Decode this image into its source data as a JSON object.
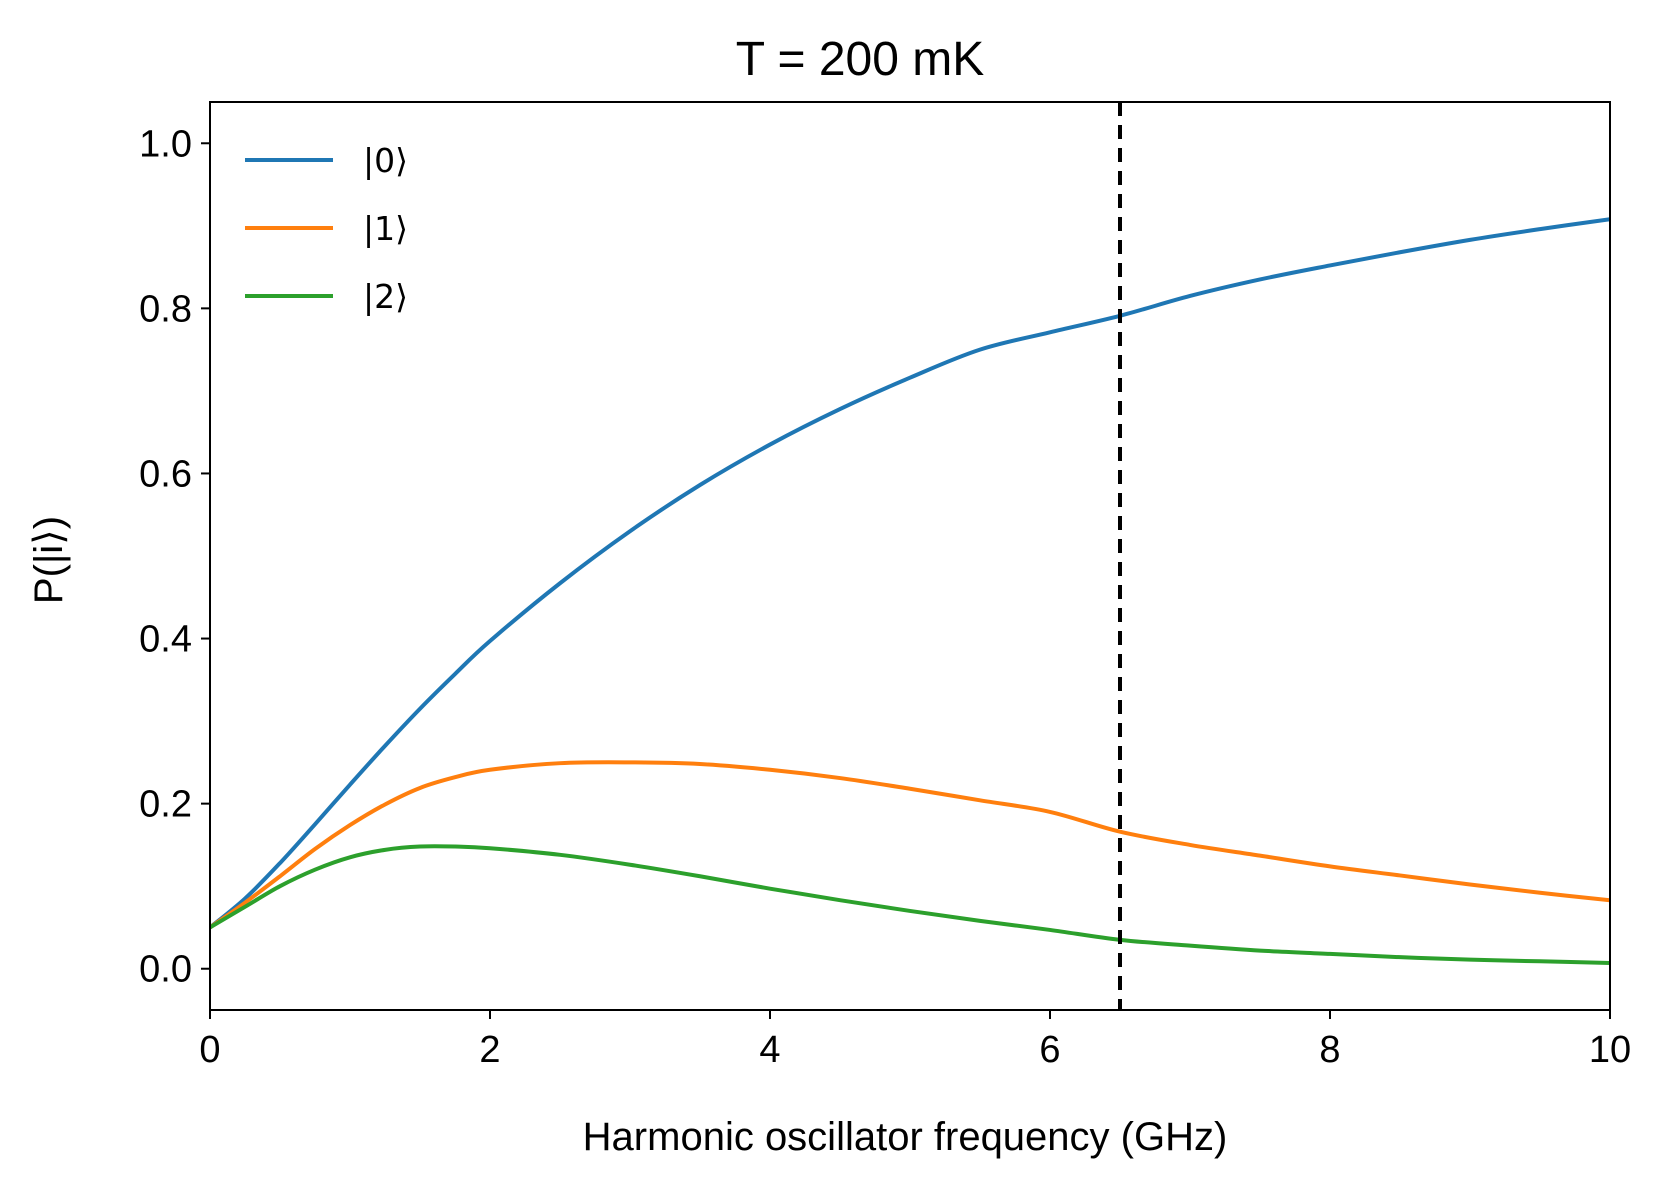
{
  "chart_data": {
    "type": "line",
    "title": "T = 200 mK",
    "xlabel": "Harmonic oscillator frequency (GHz)",
    "ylabel": "P(|i⟩)",
    "xlim": [
      0,
      10
    ],
    "ylim": [
      -0.05,
      1.05
    ],
    "xticks": [
      0,
      2,
      4,
      6,
      8,
      10
    ],
    "xtick_labels": [
      "0",
      "2",
      "4",
      "6",
      "8",
      "10"
    ],
    "yticks": [
      0.0,
      0.2,
      0.4,
      0.6,
      0.8,
      1.0
    ],
    "ytick_labels": [
      "0.0",
      "0.2",
      "0.4",
      "0.6",
      "0.8",
      "1.0"
    ],
    "grid": false,
    "legend_position": "top-left",
    "vline": {
      "x": 6.5,
      "style": "dashed",
      "color": "#000000"
    },
    "x": [
      0,
      0.25,
      0.5,
      0.75,
      1,
      1.25,
      1.5,
      1.75,
      2,
      2.5,
      3,
      3.5,
      4,
      4.5,
      5,
      5.5,
      6,
      6.5,
      7,
      7.5,
      8,
      8.5,
      9,
      9.5,
      10
    ],
    "series": [
      {
        "name": "|0⟩",
        "color": "#1f77b4",
        "values": [
          0.05,
          0.085,
          0.128,
          0.175,
          0.223,
          0.27,
          0.315,
          0.357,
          0.397,
          0.467,
          0.53,
          0.586,
          0.635,
          0.678,
          0.716,
          0.75,
          0.771,
          0.791,
          0.815,
          0.835,
          0.852,
          0.868,
          0.883,
          0.896,
          0.908
        ]
      },
      {
        "name": "|1⟩",
        "color": "#ff7f0e",
        "values": [
          0.05,
          0.08,
          0.112,
          0.145,
          0.174,
          0.199,
          0.219,
          0.232,
          0.241,
          0.249,
          0.25,
          0.248,
          0.241,
          0.231,
          0.218,
          0.204,
          0.19,
          0.166,
          0.15,
          0.137,
          0.124,
          0.113,
          0.102,
          0.092,
          0.083
        ]
      },
      {
        "name": "|2⟩",
        "color": "#2ca02c",
        "values": [
          0.05,
          0.075,
          0.1,
          0.12,
          0.135,
          0.144,
          0.148,
          0.148,
          0.146,
          0.138,
          0.126,
          0.112,
          0.097,
          0.083,
          0.07,
          0.058,
          0.047,
          0.035,
          0.028,
          0.022,
          0.018,
          0.014,
          0.011,
          0.009,
          0.007
        ]
      }
    ]
  }
}
